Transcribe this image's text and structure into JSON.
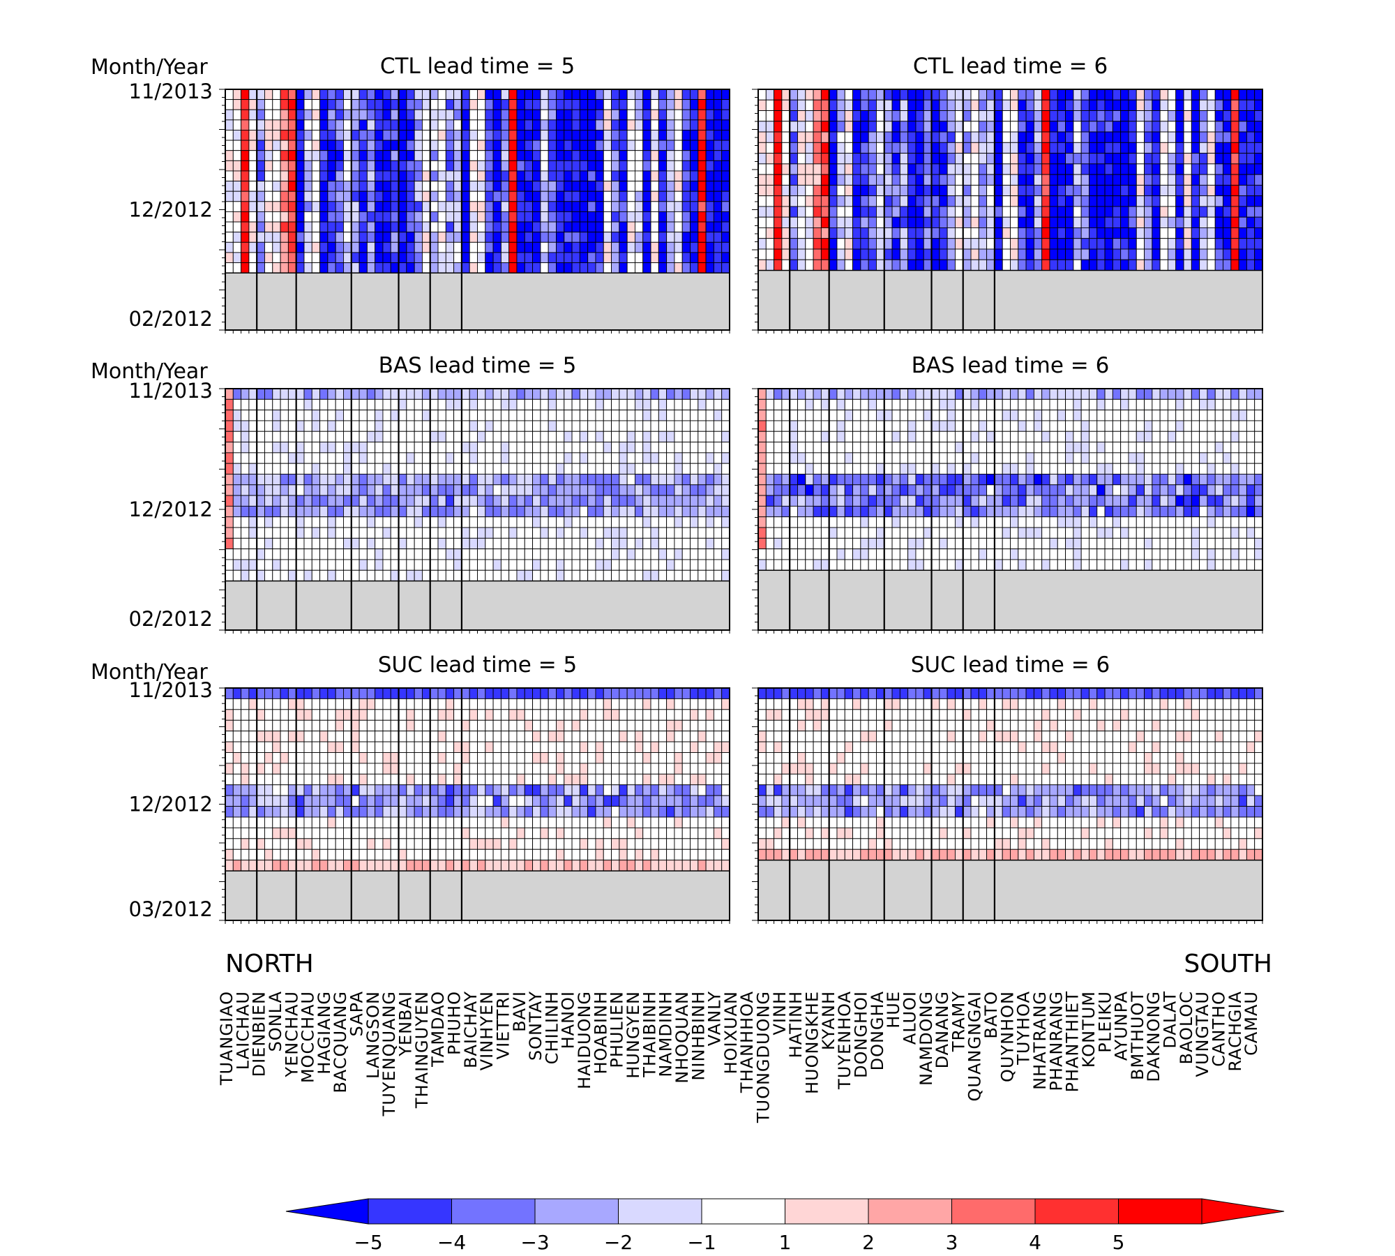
{
  "chart_data": {
    "type": "heatmap",
    "y_axis_label": "Month/Year",
    "region_labels": {
      "left": "NORTH",
      "right": "SOUTH"
    },
    "stations": [
      "TUANGIAO",
      "LAICHAU",
      "DIENBIEN",
      "SONLA",
      "YENCHAU",
      "MOCCHAU",
      "HAGIANG",
      "BACQUANG",
      "SAPA",
      "LANGSON",
      "TUYENQUANG",
      "YENBAI",
      "THAINGUYEN",
      "TAMDAO",
      "PHUHO",
      "BAICHAY",
      "VINHYEN",
      "VIETTRI",
      "BAVI",
      "SONTAY",
      "CHILINH",
      "HANOI",
      "HAIDUONG",
      "HOABINH",
      "PHULIEN",
      "HUNGYEN",
      "THAIBINH",
      "NAMDINH",
      "NHOQUAN",
      "NINHBINH",
      "VANLY",
      "HOIXUAN",
      "THANHHOA",
      "TUONGDUONG",
      "VINH",
      "HATINH",
      "HUONGKHE",
      "KYANH",
      "TUYENHOA",
      "DONGHOI",
      "DONGHA",
      "HUE",
      "ALUOI",
      "NAMDONG",
      "DANANG",
      "TRAMY",
      "QUANGNGAI",
      "BATO",
      "QUYNHON",
      "TUYHOA",
      "NHATRANG",
      "PHANRANG",
      "PHANTHIET",
      "KONTUM",
      "PLEIKU",
      "AYUNPA",
      "BMTHUOT",
      "DAKNONG",
      "DALAT",
      "BAOLOC",
      "VUNGTAU",
      "CANTHO",
      "RACHGIA",
      "CAMAU"
    ],
    "colorbar": {
      "ticks": [
        "−5",
        "−4",
        "−3",
        "−2",
        "−1",
        "1",
        "2",
        "3",
        "4",
        "5"
      ],
      "colors": [
        "#0000ff",
        "#3636ff",
        "#7373ff",
        "#a8a8ff",
        "#d9d9ff",
        "#ffffff",
        "#ffd6d6",
        "#ffa6a6",
        "#ff6b6b",
        "#ff3030",
        "#ff0000"
      ]
    },
    "missing_color": "#d3d3d3",
    "panels": [
      {
        "title": "CTL lead time = 5",
        "y_ticks": {
          "top": "11/2013",
          "middle": "12/2012",
          "bottom": "02/2012"
        },
        "data_rows": 18,
        "missing_rows": 5,
        "pattern": "ctl"
      },
      {
        "title": "CTL lead time = 6",
        "y_ticks": {
          "top": "",
          "middle": "",
          "bottom": ""
        },
        "data_rows": 17,
        "missing_rows": 5,
        "pattern": "ctl"
      },
      {
        "title": "BAS lead time = 5",
        "y_ticks": {
          "top": "11/2013",
          "middle": "12/2012",
          "bottom": "02/2012"
        },
        "data_rows": 18,
        "missing_rows": 4,
        "pattern": "bas"
      },
      {
        "title": "BAS lead time = 6",
        "y_ticks": {
          "top": "",
          "middle": "",
          "bottom": ""
        },
        "data_rows": 17,
        "missing_rows": 5,
        "pattern": "bas"
      },
      {
        "title": "SUC lead time = 5",
        "y_ticks": {
          "top": "11/2013",
          "middle": "12/2012",
          "bottom": "03/2012"
        },
        "data_rows": 17,
        "missing_rows": 4,
        "pattern": "suc"
      },
      {
        "title": "SUC lead time = 6",
        "y_ticks": {
          "top": "",
          "middle": "",
          "bottom": ""
        },
        "data_rows": 16,
        "missing_rows": 5,
        "pattern": "suc"
      }
    ]
  }
}
